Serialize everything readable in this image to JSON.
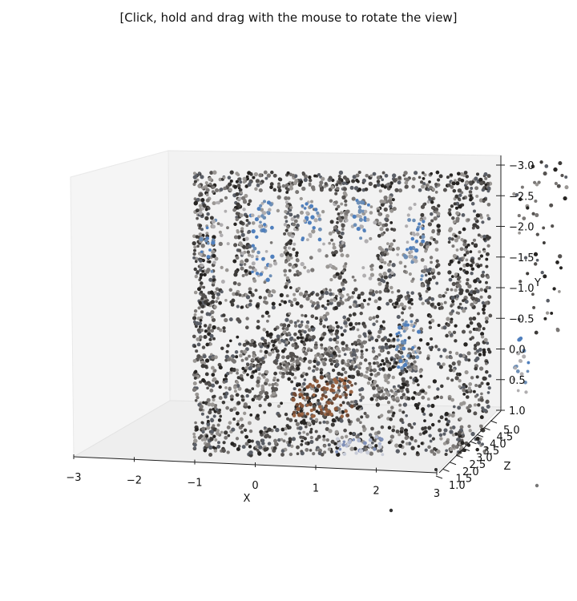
{
  "title": "[Click, hold and drag with the mouse to rotate the view]",
  "chart_data": {
    "type": "scatter",
    "projection": "3d",
    "xlabel": "X",
    "ylabel": "Y",
    "zlabel": "Z",
    "xlim": [
      -3,
      3
    ],
    "ylim": [
      -3.0,
      1.0
    ],
    "zlim": [
      1.0,
      5.0
    ],
    "x_ticks": [
      "−3",
      "−2",
      "−1",
      "0",
      "1",
      "2",
      "3"
    ],
    "y_ticks": [
      "−3.0",
      "−2.5",
      "−2.0",
      "−1.5",
      "−1.0",
      "−0.5",
      "0.0",
      "0.5",
      "1.0"
    ],
    "z_ticks": [
      "1.0",
      "1.5",
      "2.0",
      "2.5",
      "3.0",
      "3.5",
      "4.0",
      "4.5",
      "5.0"
    ],
    "y_axis_inverted": true,
    "point_colors": [
      "#3d3b39",
      "#555250",
      "#7a7775",
      "#9a9794",
      "#262422",
      "#6e8fb6",
      "#4f7fbd",
      "#8a5638",
      "#b0aeb0",
      "#5a5e66"
    ],
    "description_of_points": "dense point cloud of a building facade: outer frame, three upper window openings, central arch with a door"
  }
}
